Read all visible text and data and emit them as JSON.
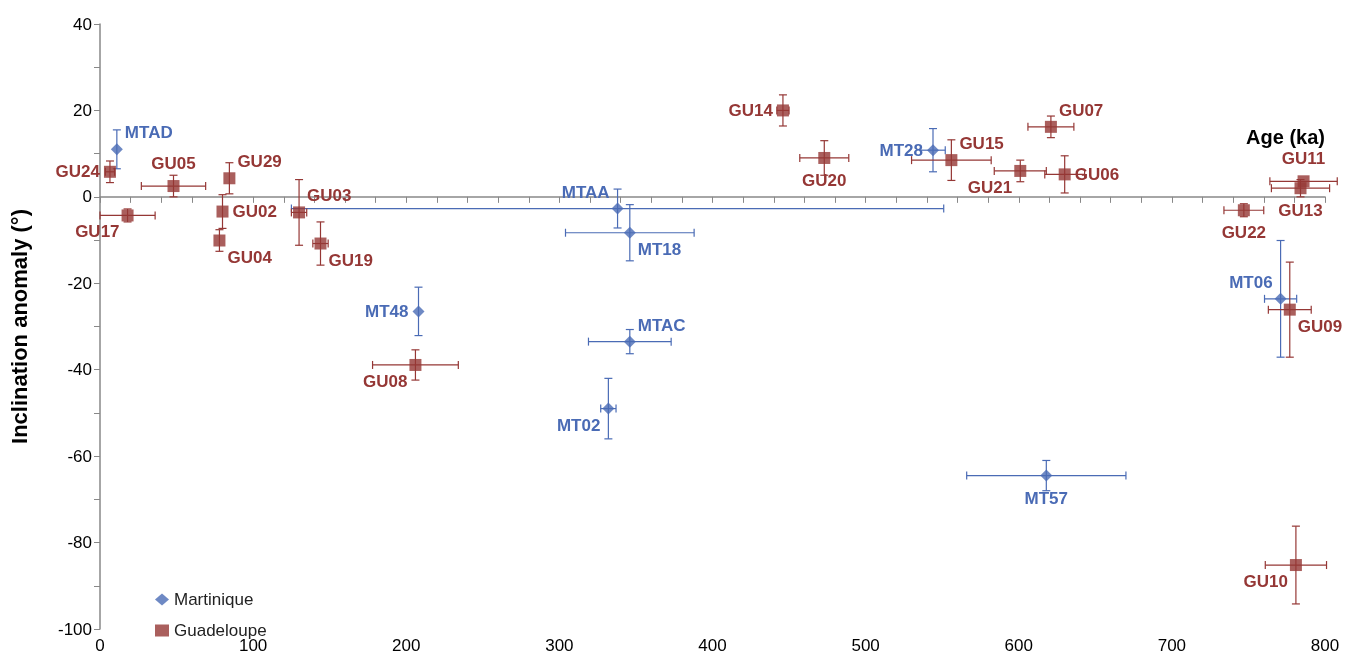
{
  "chart_data": {
    "type": "scatter",
    "xlabel": "Age (ka)",
    "ylabel": "Inclination anomaly (°)",
    "xlim": [
      0,
      800
    ],
    "xticks": [
      0,
      {
        "value": 20,
        "label": null
      },
      {
        "value": 40,
        "label": null
      },
      {
        "value": 60,
        "label": null
      },
      {
        "value": 80,
        "label": null
      },
      100,
      {
        "value": 120,
        "label": null
      },
      {
        "value": 140,
        "label": null
      },
      {
        "value": 160,
        "label": null
      },
      {
        "value": 180,
        "label": null
      },
      200,
      {
        "value": 220,
        "label": null
      },
      {
        "value": 240,
        "label": null
      },
      {
        "value": 260,
        "label": null
      },
      {
        "value": 280,
        "label": null
      },
      300,
      {
        "value": 320,
        "label": null
      },
      {
        "value": 340,
        "label": null
      },
      {
        "value": 360,
        "label": null
      },
      {
        "value": 380,
        "label": null
      },
      400,
      {
        "value": 420,
        "label": null
      },
      {
        "value": 440,
        "label": null
      },
      {
        "value": 460,
        "label": null
      },
      {
        "value": 480,
        "label": null
      },
      500,
      {
        "value": 520,
        "label": null
      },
      {
        "value": 540,
        "label": null
      },
      {
        "value": 560,
        "label": null
      },
      {
        "value": 580,
        "label": null
      },
      600,
      {
        "value": 620,
        "label": null
      },
      {
        "value": 640,
        "label": null
      },
      {
        "value": 660,
        "label": null
      },
      {
        "value": 680,
        "label": null
      },
      700,
      {
        "value": 720,
        "label": null
      },
      {
        "value": 740,
        "label": null
      },
      {
        "value": 760,
        "label": null
      },
      {
        "value": 780,
        "label": null
      },
      800
    ],
    "ylim": [
      -100,
      40
    ],
    "yticks": [
      -100,
      {
        "value": -90,
        "label": null
      },
      -80,
      {
        "value": -70,
        "label": null
      },
      -60,
      {
        "value": -50,
        "label": null
      },
      -40,
      {
        "value": -30,
        "label": null
      },
      -20,
      {
        "value": -10,
        "label": null
      },
      0,
      {
        "value": 10,
        "label": null
      },
      20,
      {
        "value": 30,
        "label": null
      },
      40
    ],
    "legend": "bottom left",
    "series": [
      {
        "name": "Martinique",
        "color": "#4a6bb5",
        "marker": "diamond",
        "x": [
          11,
          338,
          346,
          208,
          346,
          332,
          544,
          771,
          618
        ],
        "values": [
          11,
          -2.7,
          -8.3,
          -26.5,
          -33.5,
          -49,
          10.8,
          -23.6,
          -64.5
        ],
        "errors": [
          4.5,
          4.5,
          6.5,
          5.6,
          2.8,
          7,
          5,
          13.5,
          3.5
        ],
        "xerrors": [
          null,
          213,
          42,
          null,
          27,
          5,
          8,
          10.5,
          52
        ]
      },
      {
        "name": "Guadeloupe",
        "color": "#953735",
        "marker": "square",
        "x": [
          6.5,
          48,
          84.5,
          18,
          80,
          78,
          130,
          144,
          206,
          446,
          473,
          556,
          601,
          621,
          630,
          786,
          784,
          747,
          777,
          781
        ],
        "values": [
          5.8,
          2.5,
          4.3,
          -4.3,
          -3.4,
          -10.1,
          -3.6,
          -10.8,
          -38.9,
          20,
          9,
          8.5,
          6,
          16.2,
          5.2,
          3.6,
          2,
          -3.1,
          -26.1,
          -85.2
        ],
        "errors": [
          2.5,
          2.5,
          3.6,
          1.5,
          3.9,
          2.5,
          7.6,
          5,
          3.5,
          3.6,
          4,
          4.7,
          2.5,
          2.5,
          4.3,
          null,
          2,
          1.5,
          11,
          9
        ],
        "xerrors": [
          3,
          21,
          null,
          18,
          null,
          null,
          5,
          5,
          28,
          4,
          16,
          26,
          17,
          15,
          13,
          22,
          19,
          13,
          14,
          20
        ]
      }
    ],
    "annotations": [
      {
        "text": "MTAD",
        "x": 11,
        "y": 11
      },
      {
        "text": "MTAA",
        "x": 338,
        "y": -2.7
      },
      {
        "text": "MT18",
        "x": 346,
        "y": -8.3
      },
      {
        "text": "MT48",
        "x": 208,
        "y": -26.5
      },
      {
        "text": "MTAC",
        "x": 346,
        "y": -33.5
      },
      {
        "text": "MT02",
        "x": 332,
        "y": -49
      },
      {
        "text": "MT28",
        "x": 544,
        "y": 10.8
      },
      {
        "text": "MT06",
        "x": 771,
        "y": -23.6
      },
      {
        "text": "MT57",
        "x": 618,
        "y": -64.5
      },
      {
        "text": "GU24",
        "x": 6.5,
        "y": 5.8
      },
      {
        "text": "GU05",
        "x": 48,
        "y": 2.5
      },
      {
        "text": "GU29",
        "x": 84.5,
        "y": 4.3
      },
      {
        "text": "GU17",
        "x": 18,
        "y": -4.3
      },
      {
        "text": "GU02",
        "x": 80,
        "y": -3.4
      },
      {
        "text": "GU04",
        "x": 78,
        "y": -10.1
      },
      {
        "text": "GU03",
        "x": 130,
        "y": -3.6
      },
      {
        "text": "GU19",
        "x": 144,
        "y": -10.8
      },
      {
        "text": "GU08",
        "x": 206,
        "y": -38.9
      },
      {
        "text": "GU14",
        "x": 446,
        "y": 20
      },
      {
        "text": "GU20",
        "x": 473,
        "y": 9
      },
      {
        "text": "GU15",
        "x": 556,
        "y": 8.5
      },
      {
        "text": "GU21",
        "x": 601,
        "y": 6
      },
      {
        "text": "GU07",
        "x": 621,
        "y": 16.2
      },
      {
        "text": "GU06",
        "x": 630,
        "y": 5.2
      },
      {
        "text": "GU11",
        "x": 786,
        "y": 3.6
      },
      {
        "text": "GU13",
        "x": 784,
        "y": 2
      },
      {
        "text": "GU22",
        "x": 747,
        "y": -3.1
      },
      {
        "text": "GU09",
        "x": 777,
        "y": -26.1
      },
      {
        "text": "GU10",
        "x": 781,
        "y": -85.2
      }
    ]
  }
}
